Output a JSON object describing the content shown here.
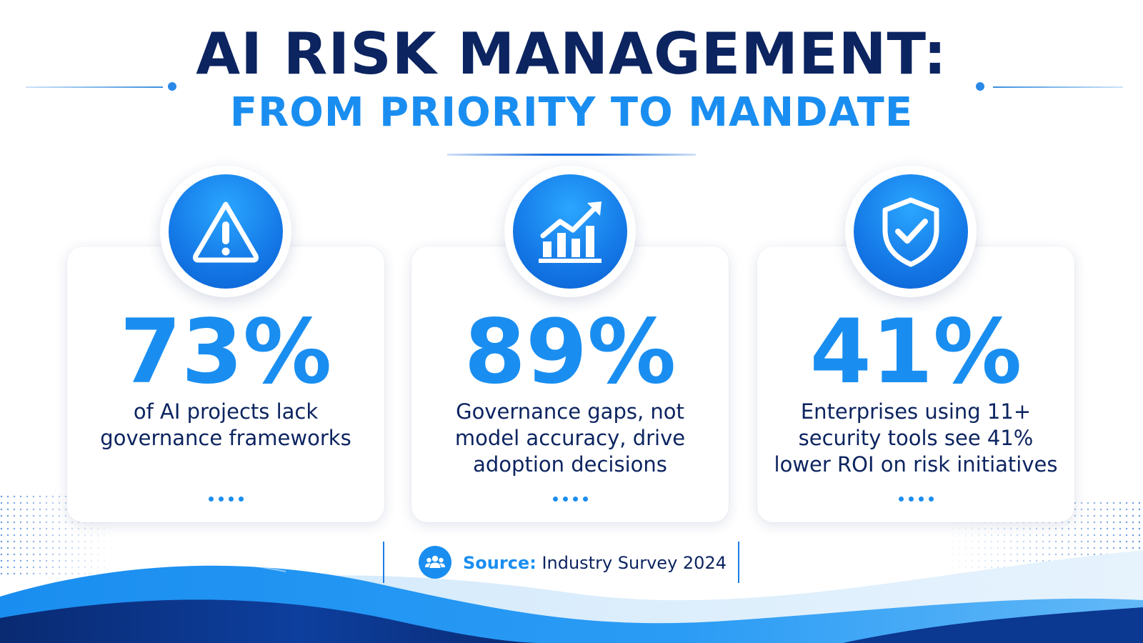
{
  "header": {
    "title": "AI RISK MANAGEMENT:",
    "subtitle": "FROM PRIORITY TO MANDATE"
  },
  "cards": [
    {
      "icon": "warning-icon",
      "value": "73%",
      "description": "of AI projects lack governance frameworks"
    },
    {
      "icon": "growth-chart-icon",
      "value": "89%",
      "description": "Governance gaps, not model accuracy, drive adoption decisions"
    },
    {
      "icon": "shield-check-icon",
      "value": "41%",
      "description": "Enterprises using 11+ security tools see 41% lower ROI on risk initiatives"
    }
  ],
  "source": {
    "icon": "users-icon",
    "label": "Source:",
    "text": "Industry Survey 2024"
  },
  "colors": {
    "navy": "#0c2460",
    "accent_blue": "#1a8ef0",
    "icon_blue": "#1478e6",
    "background": "#ffffff"
  }
}
